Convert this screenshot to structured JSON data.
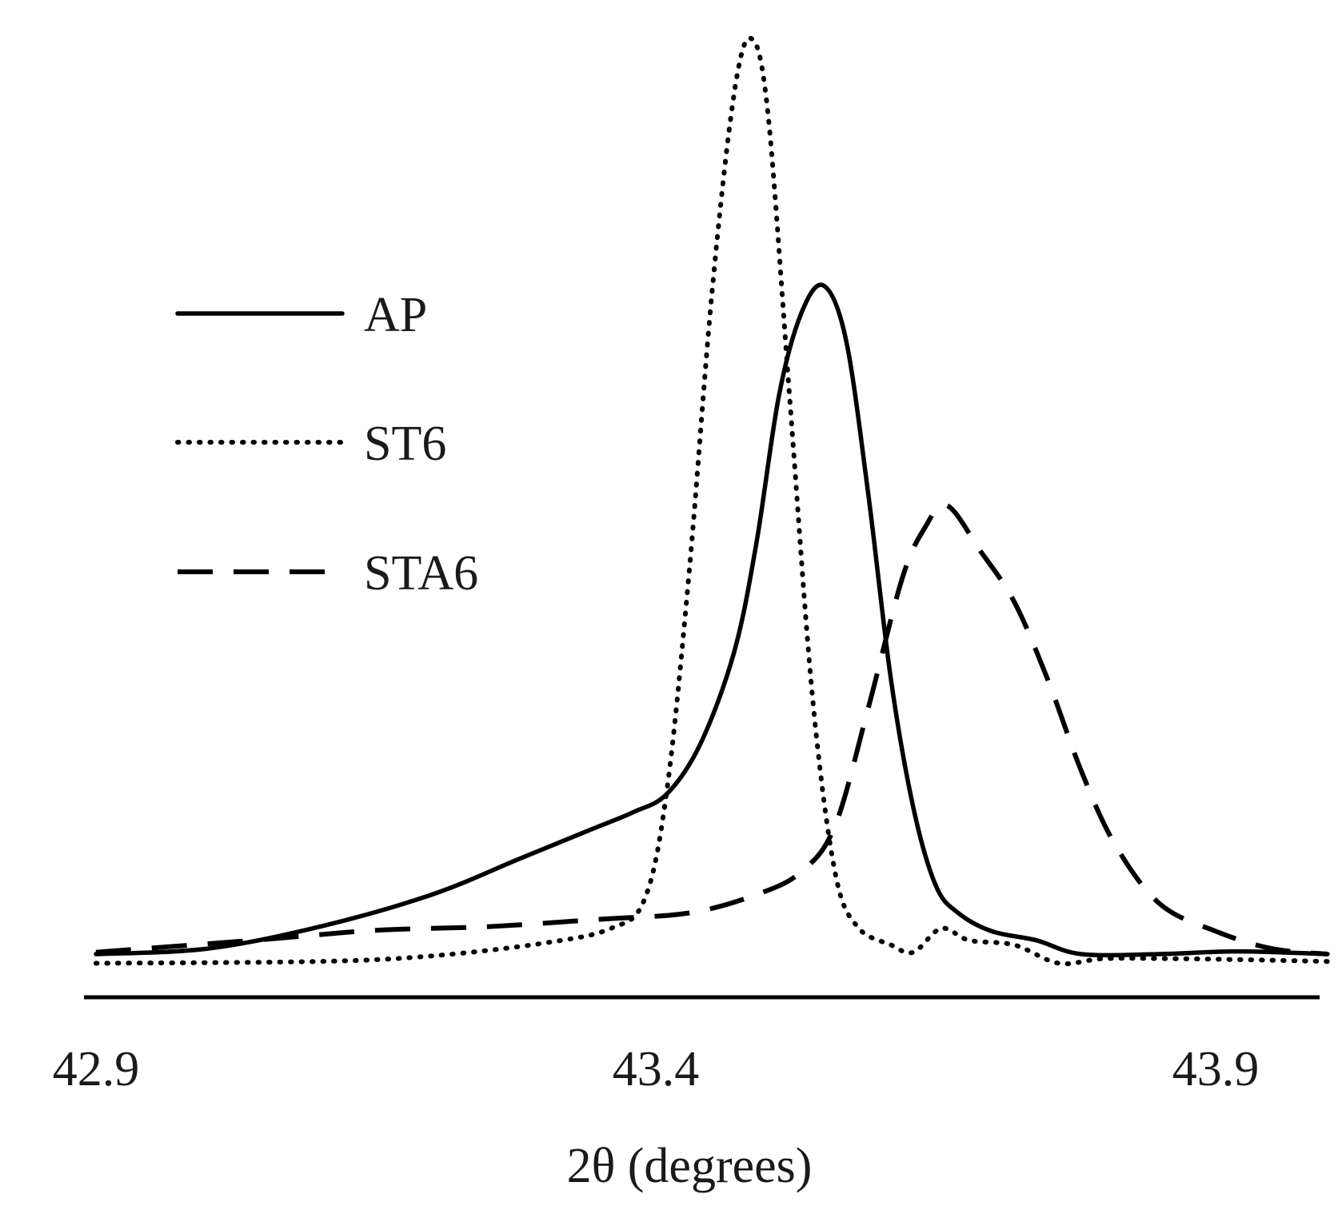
{
  "chart_data": {
    "type": "line",
    "title": "",
    "xlabel": "2θ (degrees)",
    "ylabel": "",
    "xlim": [
      42.9,
      44.0
    ],
    "ylim": [
      0,
      100
    ],
    "x_ticks": [
      42.9,
      43.4,
      43.9
    ],
    "x_tick_labels": [
      "42.9",
      "43.4",
      "43.9"
    ],
    "legend_position": "upper-left",
    "series": [
      {
        "name": "AP",
        "style": "solid",
        "color": "#000000",
        "points": [
          [
            42.9,
            0.0
          ],
          [
            43.0,
            0.6
          ],
          [
            43.1,
            3.0
          ],
          [
            43.2,
            6.5
          ],
          [
            43.28,
            10.5
          ],
          [
            43.34,
            13.5
          ],
          [
            43.38,
            15.5
          ],
          [
            43.41,
            17.5
          ],
          [
            43.44,
            23.0
          ],
          [
            43.47,
            33.0
          ],
          [
            43.49,
            45.0
          ],
          [
            43.51,
            61.0
          ],
          [
            43.53,
            70.0
          ],
          [
            43.55,
            73.0
          ],
          [
            43.57,
            67.0
          ],
          [
            43.59,
            50.0
          ],
          [
            43.61,
            30.0
          ],
          [
            43.63,
            16.0
          ],
          [
            43.65,
            7.5
          ],
          [
            43.67,
            4.5
          ],
          [
            43.7,
            2.5
          ],
          [
            43.74,
            1.5
          ],
          [
            43.78,
            0.0
          ],
          [
            43.85,
            0.0
          ],
          [
            43.92,
            0.3
          ],
          [
            44.0,
            0.0
          ]
        ]
      },
      {
        "name": "ST6",
        "style": "dotted",
        "color": "#000000",
        "points": [
          [
            42.9,
            -1.0
          ],
          [
            43.1,
            -0.8
          ],
          [
            43.2,
            -0.2
          ],
          [
            43.3,
            1.2
          ],
          [
            43.36,
            2.8
          ],
          [
            43.39,
            6.0
          ],
          [
            43.41,
            18.0
          ],
          [
            43.43,
            42.0
          ],
          [
            43.45,
            72.0
          ],
          [
            43.47,
            94.0
          ],
          [
            43.485,
            100.0
          ],
          [
            43.5,
            92.0
          ],
          [
            43.52,
            60.0
          ],
          [
            43.54,
            28.0
          ],
          [
            43.56,
            9.0
          ],
          [
            43.58,
            3.0
          ],
          [
            43.61,
            1.0
          ],
          [
            43.63,
            0.2
          ],
          [
            43.655,
            2.8
          ],
          [
            43.68,
            1.5
          ],
          [
            43.72,
            1.0
          ],
          [
            43.76,
            -1.0
          ],
          [
            43.8,
            -0.5
          ],
          [
            43.86,
            -0.5
          ],
          [
            43.92,
            -0.6
          ],
          [
            44.0,
            -0.8
          ]
        ]
      },
      {
        "name": "STA6",
        "style": "dashed",
        "color": "#000000",
        "points": [
          [
            42.9,
            0.2
          ],
          [
            43.05,
            1.6
          ],
          [
            43.15,
            2.6
          ],
          [
            43.25,
            3.0
          ],
          [
            43.35,
            3.8
          ],
          [
            43.43,
            4.5
          ],
          [
            43.49,
            6.5
          ],
          [
            43.53,
            9.0
          ],
          [
            43.56,
            14.0
          ],
          [
            43.59,
            27.0
          ],
          [
            43.62,
            41.0
          ],
          [
            43.64,
            46.5
          ],
          [
            43.66,
            49.0
          ],
          [
            43.69,
            44.0
          ],
          [
            43.72,
            38.5
          ],
          [
            43.75,
            30.0
          ],
          [
            43.78,
            20.0
          ],
          [
            43.81,
            12.0
          ],
          [
            43.85,
            5.5
          ],
          [
            43.9,
            2.5
          ],
          [
            43.95,
            0.6
          ],
          [
            44.0,
            0.0
          ]
        ]
      }
    ]
  }
}
